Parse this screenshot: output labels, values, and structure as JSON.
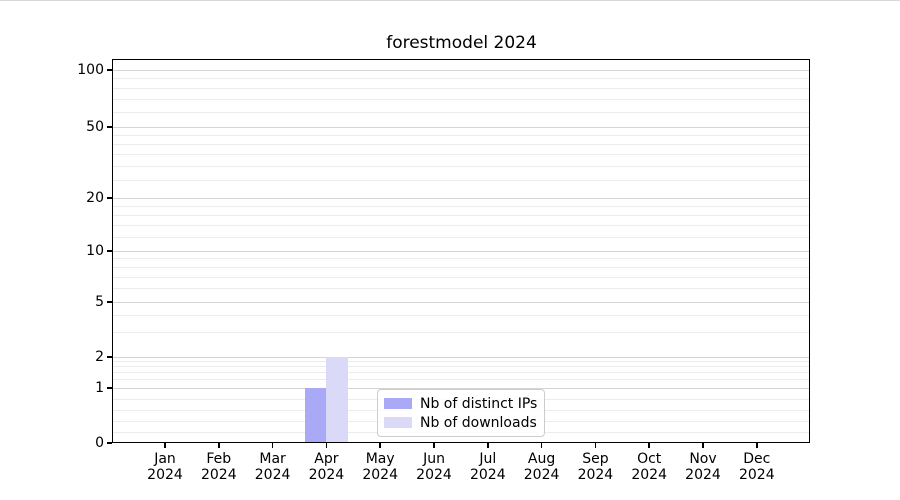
{
  "title": "forestmodel 2024",
  "chart_data": {
    "type": "bar",
    "title": "forestmodel 2024",
    "categories": [
      "Jan 2024",
      "Feb 2024",
      "Mar 2024",
      "Apr 2024",
      "May 2024",
      "Jun 2024",
      "Jul 2024",
      "Aug 2024",
      "Sep 2024",
      "Oct 2024",
      "Nov 2024",
      "Dec 2024"
    ],
    "series": [
      {
        "name": "Nb of distinct IPs",
        "color": "#a9a9f5",
        "values": [
          0,
          0,
          0,
          1,
          0,
          0,
          0,
          0,
          0,
          0,
          0,
          0
        ]
      },
      {
        "name": "Nb of downloads",
        "color": "#dadaf8",
        "values": [
          0,
          0,
          0,
          2,
          0,
          0,
          0,
          0,
          0,
          0,
          0,
          0
        ]
      }
    ],
    "xlabel": "",
    "ylabel": "",
    "yscale": "symlog",
    "ylim": [
      0,
      112
    ],
    "y_ticks": [
      0,
      1,
      2,
      5,
      10,
      20,
      50,
      100
    ],
    "y_minor_gridlines": [
      0.2,
      0.4,
      0.6,
      0.8,
      1.2,
      1.4,
      1.6,
      1.8,
      3,
      4,
      6,
      7,
      8,
      9,
      12,
      14,
      16,
      18,
      25,
      30,
      35,
      40,
      45,
      60,
      70,
      80,
      90
    ],
    "grid": "horizontal major+minor",
    "legend_position": "lower center"
  },
  "colors": {
    "major_grid": "#d4d4d4",
    "minor_grid": "#ececec",
    "axis": "#000000",
    "background": "#ffffff"
  }
}
